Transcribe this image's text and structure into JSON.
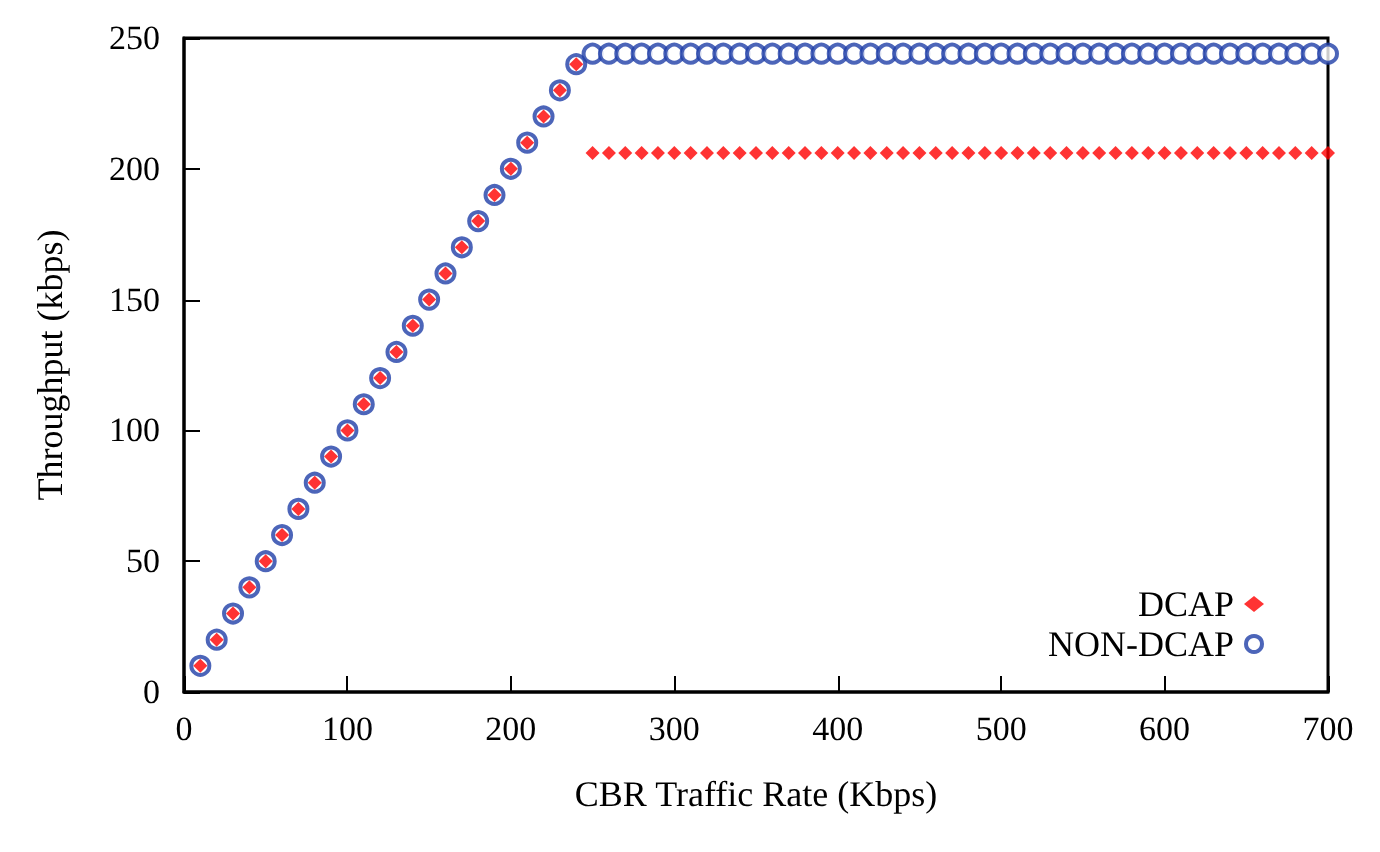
{
  "chart_data": {
    "type": "scatter",
    "xlabel": "CBR Traffic Rate (Kbps)",
    "ylabel": "Throughput (kbps)",
    "xlim": [
      0,
      700
    ],
    "xticks": [
      0,
      100,
      200,
      300,
      400,
      500,
      600,
      700
    ],
    "ylim": [
      0,
      250
    ],
    "yticks": [
      0,
      50,
      100,
      150,
      200,
      250
    ],
    "grid": false,
    "legend": "bottom right",
    "x": [
      10,
      20,
      30,
      40,
      50,
      60,
      70,
      80,
      90,
      100,
      110,
      120,
      130,
      140,
      150,
      160,
      170,
      180,
      190,
      200,
      210,
      220,
      230,
      240,
      250,
      260,
      270,
      280,
      290,
      300,
      310,
      320,
      330,
      340,
      350,
      360,
      370,
      380,
      390,
      400,
      410,
      420,
      430,
      440,
      450,
      460,
      470,
      480,
      490,
      500,
      510,
      520,
      530,
      540,
      550,
      560,
      570,
      580,
      590,
      600,
      610,
      620,
      630,
      640,
      650,
      660,
      670,
      680,
      690,
      700
    ],
    "series": [
      {
        "name": "DCAP",
        "color": "#ff0000",
        "marker": "diamond",
        "values": [
          10,
          20,
          30,
          40,
          50,
          60,
          70,
          80,
          90,
          100,
          110,
          120,
          130,
          140,
          150,
          160,
          170,
          180,
          190,
          200,
          210,
          220,
          230,
          240,
          206,
          206,
          206,
          206,
          206,
          206,
          206,
          206,
          206,
          206,
          206,
          206,
          206,
          206,
          206,
          206,
          206,
          206,
          206,
          206,
          206,
          206,
          206,
          206,
          206,
          206,
          206,
          206,
          206,
          206,
          206,
          206,
          206,
          206,
          206,
          206,
          206,
          206,
          206,
          206,
          206,
          206,
          206,
          206,
          206,
          206
        ]
      },
      {
        "name": "NON-DCAP",
        "color": "#1f3fa8",
        "marker": "circle",
        "values": [
          10,
          20,
          30,
          40,
          50,
          60,
          70,
          80,
          90,
          100,
          110,
          120,
          130,
          140,
          150,
          160,
          170,
          180,
          190,
          200,
          210,
          220,
          230,
          240,
          244,
          244,
          244,
          244,
          244,
          244,
          244,
          244,
          244,
          244,
          244,
          244,
          244,
          244,
          244,
          244,
          244,
          244,
          244,
          244,
          244,
          244,
          244,
          244,
          244,
          244,
          244,
          244,
          244,
          244,
          244,
          244,
          244,
          244,
          244,
          244,
          244,
          244,
          244,
          244,
          244,
          244,
          244,
          244,
          244,
          244
        ]
      }
    ]
  }
}
